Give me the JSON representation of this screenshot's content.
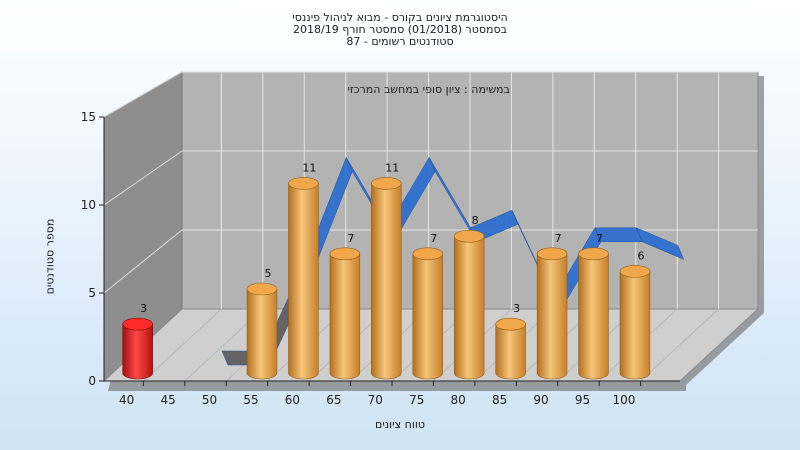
{
  "chart_data": {
    "type": "bar",
    "title_lines": [
      "היסטוגרמת ציונים בקורס - מבוא לניהול פיננסי",
      "בסמסטר  (01/2018)  סמסטר חורף 2018/19",
      "סטודנטים רשומים - 87"
    ],
    "annotation": "במשימה : ציון סופי במחשב המרכזי",
    "xlabel": "טווח ציונים",
    "ylabel": "מספר סטודנטים",
    "categories": [
      "40",
      "45",
      "50",
      "55",
      "60",
      "65",
      "70",
      "75",
      "80",
      "85",
      "90",
      "95",
      "100"
    ],
    "values": [
      3,
      0,
      0,
      5,
      11,
      7,
      11,
      7,
      8,
      3,
      7,
      7,
      6
    ],
    "highlight_category": "40",
    "yticks": [
      0,
      5,
      10,
      15
    ],
    "ylim": [
      0,
      15
    ],
    "grid": true,
    "colors": {
      "bar": "#e9a94a",
      "highlight": "#e01515",
      "ribbon": "#2f6fd0",
      "ribbon_gray": "#666666",
      "wall": "#a9a9a9",
      "floor": "#c8c8c8"
    }
  }
}
